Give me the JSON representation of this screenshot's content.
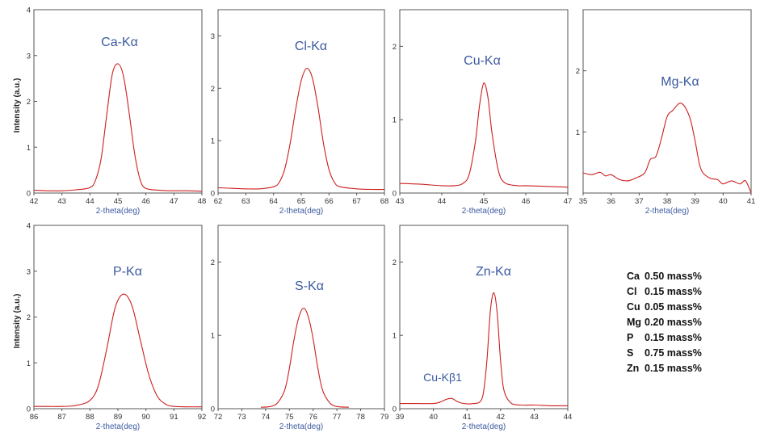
{
  "figure": {
    "ylabel": "Intensity (a.u.)",
    "xlabel": "2-theta(deg)"
  },
  "legend": [
    {
      "element": "Ca",
      "value": "0.50 mass%"
    },
    {
      "element": "Cl",
      "value": "0.15 mass%"
    },
    {
      "element": "Cu",
      "value": "0.05 mass%"
    },
    {
      "element": "Mg",
      "value": "0.20 mass%"
    },
    {
      "element": "P",
      "value": "0.15 mass%"
    },
    {
      "element": "S",
      "value": "0.75 mass%"
    },
    {
      "element": "Zn",
      "value": "0.15 mass%"
    }
  ],
  "colors": {
    "line": "#cc1f1f",
    "label": "#3c5aa0",
    "axis": "#555555",
    "tick": "#333333"
  },
  "chart_data": [
    {
      "type": "line",
      "id": "ca",
      "title": "Ca-Kα",
      "xlabel": "2-theta(deg)",
      "ylabel": "Intensity (a.u.)",
      "xlim": [
        42,
        48
      ],
      "ylim": [
        0,
        4
      ],
      "xticks": [
        42,
        43,
        44,
        45,
        46,
        47,
        48
      ],
      "yticks": [
        0,
        1,
        2,
        3,
        4
      ],
      "x": [
        42,
        42.5,
        43,
        43.5,
        44,
        44.2,
        44.4,
        44.6,
        44.8,
        45,
        45.2,
        45.4,
        45.6,
        45.8,
        46,
        46.5,
        47,
        47.5,
        48
      ],
      "y": [
        0.06,
        0.05,
        0.05,
        0.07,
        0.12,
        0.28,
        0.75,
        1.7,
        2.6,
        2.82,
        2.55,
        1.75,
        0.85,
        0.28,
        0.1,
        0.06,
        0.05,
        0.05,
        0.04
      ]
    },
    {
      "type": "line",
      "id": "cl",
      "title": "Cl-Kα",
      "xlabel": "2-theta(deg)",
      "ylabel": "",
      "xlim": [
        62,
        68
      ],
      "ylim": [
        0,
        3.5
      ],
      "xticks": [
        62,
        63,
        64,
        65,
        66,
        67,
        68
      ],
      "yticks": [
        0,
        1,
        2,
        3
      ],
      "x": [
        62,
        62.5,
        63,
        63.5,
        64,
        64.2,
        64.4,
        64.6,
        64.8,
        65,
        65.2,
        65.4,
        65.6,
        65.8,
        66,
        66.2,
        66.4,
        67,
        67.5,
        68
      ],
      "y": [
        0.1,
        0.09,
        0.08,
        0.08,
        0.12,
        0.2,
        0.45,
        0.95,
        1.6,
        2.15,
        2.38,
        2.2,
        1.65,
        0.95,
        0.45,
        0.2,
        0.12,
        0.08,
        0.07,
        0.07
      ]
    },
    {
      "type": "line",
      "id": "cu",
      "title": "Cu-Kα",
      "xlabel": "2-theta(deg)",
      "ylabel": "",
      "xlim": [
        43,
        47
      ],
      "ylim": [
        0,
        2.5
      ],
      "xticks": [
        43,
        44,
        45,
        46,
        47
      ],
      "yticks": [
        0,
        1,
        2
      ],
      "x": [
        43,
        43.5,
        44,
        44.3,
        44.5,
        44.65,
        44.8,
        44.9,
        45,
        45.1,
        45.2,
        45.35,
        45.5,
        45.8,
        46,
        46.5,
        47
      ],
      "y": [
        0.13,
        0.12,
        0.1,
        0.1,
        0.13,
        0.25,
        0.7,
        1.2,
        1.5,
        1.3,
        0.8,
        0.3,
        0.14,
        0.1,
        0.1,
        0.09,
        0.08
      ]
    },
    {
      "type": "line",
      "id": "mg",
      "title": "Mg-Kα",
      "xlabel": "2-theta(deg)",
      "ylabel": "",
      "xlim": [
        35,
        41
      ],
      "ylim": [
        0,
        3
      ],
      "xticks": [
        35,
        36,
        37,
        38,
        39,
        40,
        41
      ],
      "yticks": [
        1,
        2
      ],
      "x": [
        35,
        35.3,
        35.6,
        35.8,
        36,
        36.3,
        36.6,
        36.9,
        37.2,
        37.4,
        37.6,
        37.8,
        38,
        38.2,
        38.5,
        38.8,
        39,
        39.2,
        39.5,
        39.8,
        40,
        40.3,
        40.6,
        40.8,
        41
      ],
      "y": [
        0.33,
        0.3,
        0.34,
        0.28,
        0.3,
        0.22,
        0.2,
        0.25,
        0.33,
        0.55,
        0.6,
        0.9,
        1.25,
        1.35,
        1.47,
        1.25,
        0.85,
        0.4,
        0.25,
        0.22,
        0.15,
        0.2,
        0.15,
        0.2,
        0.0
      ]
    },
    {
      "type": "line",
      "id": "p",
      "title": "P-Kα",
      "xlabel": "2-theta(deg)",
      "ylabel": "Intensity (a.u.)",
      "xlim": [
        86,
        92
      ],
      "ylim": [
        0,
        4
      ],
      "xticks": [
        86,
        87,
        88,
        89,
        90,
        91,
        92
      ],
      "yticks": [
        0,
        1,
        2,
        3,
        4
      ],
      "x": [
        86,
        86.5,
        87,
        87.5,
        88,
        88.3,
        88.6,
        88.9,
        89.2,
        89.5,
        89.8,
        90.1,
        90.4,
        90.7,
        91,
        91.5,
        92
      ],
      "y": [
        0.05,
        0.05,
        0.05,
        0.07,
        0.18,
        0.5,
        1.3,
        2.2,
        2.5,
        2.25,
        1.5,
        0.75,
        0.28,
        0.1,
        0.05,
        0.04,
        0.04
      ]
    },
    {
      "type": "line",
      "id": "s",
      "title": "S-Kα",
      "xlabel": "2-theta(deg)",
      "ylabel": "",
      "xlim": [
        72,
        79
      ],
      "ylim": [
        0,
        2.5
      ],
      "xticks": [
        72,
        73,
        74,
        75,
        76,
        77,
        78,
        79
      ],
      "yticks": [
        0,
        1,
        2
      ],
      "x": [
        73.8,
        74.2,
        74.5,
        74.8,
        75,
        75.2,
        75.4,
        75.6,
        75.8,
        76,
        76.2,
        76.4,
        76.7,
        77,
        77.5
      ],
      "y": [
        0.02,
        0.03,
        0.08,
        0.25,
        0.55,
        0.95,
        1.25,
        1.37,
        1.25,
        0.95,
        0.55,
        0.25,
        0.08,
        0.03,
        0.02
      ]
    },
    {
      "type": "line",
      "id": "zn",
      "title": "Zn-Kα",
      "xlabel": "2-theta(deg)",
      "ylabel": "",
      "xlim": [
        39,
        44
      ],
      "ylim": [
        0,
        2.5
      ],
      "xticks": [
        39,
        40,
        41,
        42,
        43,
        44
      ],
      "yticks": [
        0,
        1,
        2
      ],
      "x": [
        39,
        39.5,
        40,
        40.2,
        40.4,
        40.55,
        40.7,
        40.9,
        41.2,
        41.4,
        41.5,
        41.6,
        41.7,
        41.8,
        41.9,
        42,
        42.1,
        42.3,
        42.6,
        43,
        43.5,
        44
      ],
      "y": [
        0.07,
        0.07,
        0.07,
        0.09,
        0.13,
        0.14,
        0.1,
        0.07,
        0.07,
        0.1,
        0.25,
        0.7,
        1.35,
        1.58,
        1.3,
        0.65,
        0.25,
        0.08,
        0.05,
        0.05,
        0.04,
        0.04
      ],
      "annotation": {
        "text": "Cu-Kβ1"
      }
    }
  ]
}
